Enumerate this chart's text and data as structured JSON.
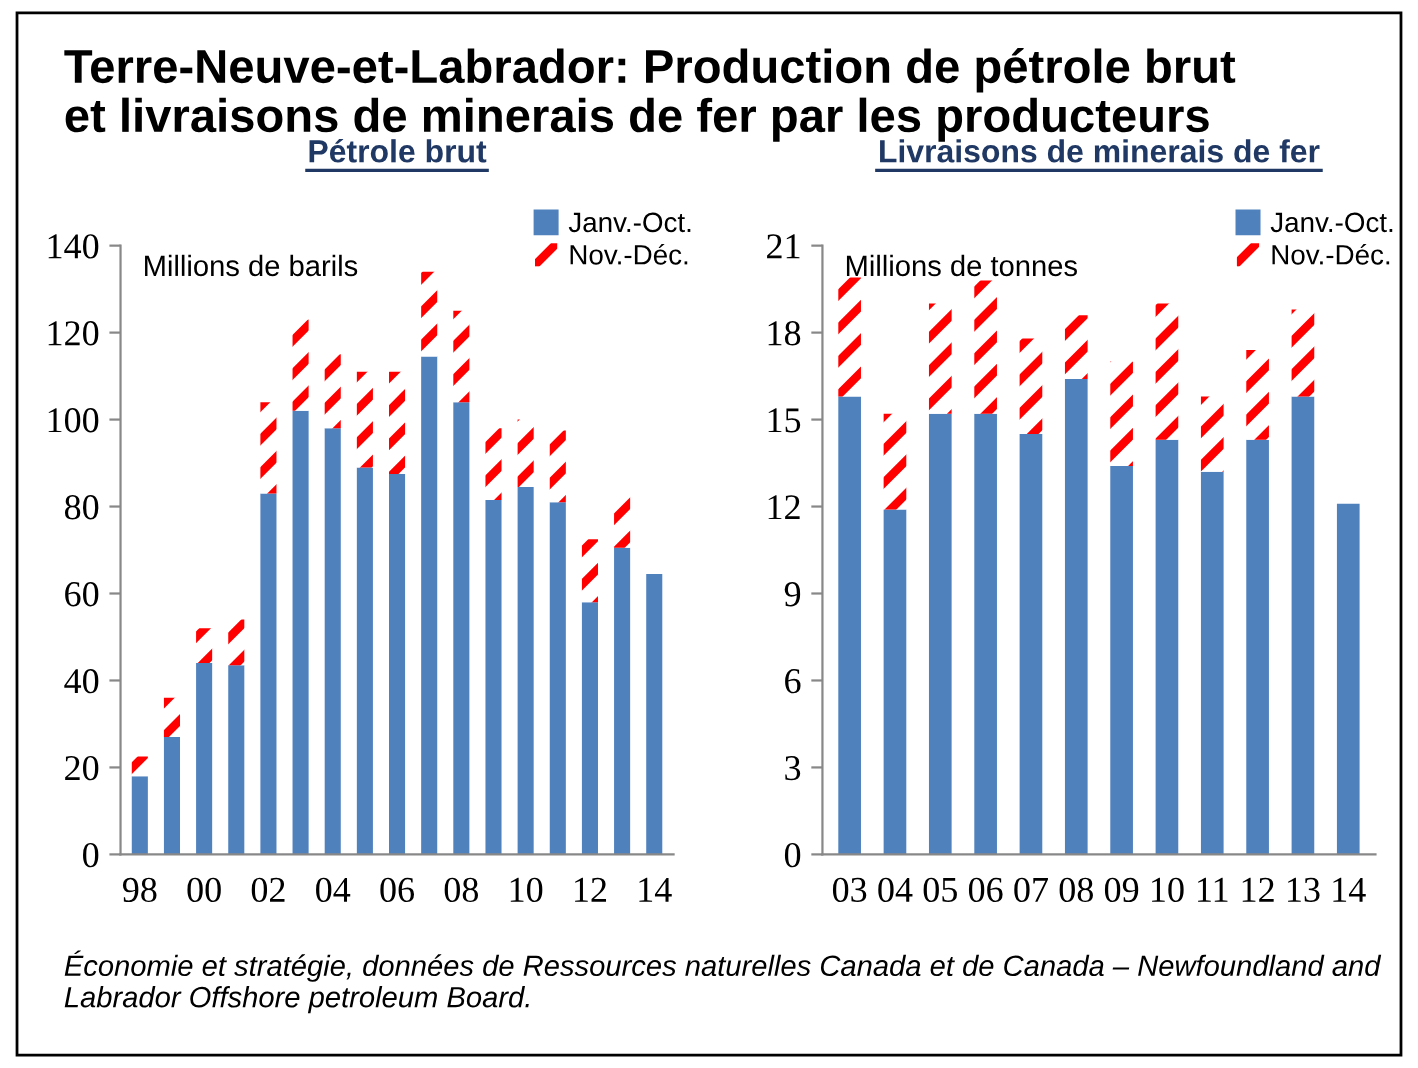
{
  "chart_data": [
    {
      "type": "bar",
      "title": "Terre-Neuve-et-Labrador: Production de pétrole brut\net livraisons de minerais de fer par les producteurs",
      "subtitle": "Pétrole brut",
      "ylabel": "Millions de barils",
      "categories": [
        "98",
        null,
        "00",
        null,
        "02",
        null,
        "04",
        null,
        "06",
        null,
        "08",
        null,
        "10",
        null,
        "12",
        null,
        "14"
      ],
      "stacked": true,
      "ylim": [
        0,
        140
      ],
      "yticks": [
        0,
        20,
        40,
        60,
        80,
        100,
        120,
        140
      ],
      "grid": false,
      "legend": "top right",
      "series": [
        {
          "name": "Janv.-Oct.",
          "color": "#4f81bd",
          "values": [
            18,
            27,
            44,
            43.5,
            83,
            102,
            98,
            89,
            87.5,
            114.5,
            104,
            81.5,
            84.5,
            81,
            58,
            70.5,
            64.5
          ]
        },
        {
          "name": "Nov.-Déc.",
          "color": "#ff0000",
          "values": [
            4.5,
            9,
            8,
            10.5,
            21,
            21,
            17,
            22,
            23.5,
            19.5,
            21,
            16.5,
            15.5,
            16.5,
            14.5,
            12.5,
            null
          ]
        }
      ]
    },
    {
      "type": "bar",
      "subtitle": "Livraisons de minerais de fer",
      "ylabel": "Millions de tonnes",
      "categories": [
        "03",
        "04",
        "05",
        "06",
        "07",
        "08",
        "09",
        "10",
        "11",
        "12",
        "13",
        "14"
      ],
      "stacked": true,
      "ylim": [
        0,
        21
      ],
      "yticks": [
        0,
        3,
        6,
        9,
        12,
        15,
        18,
        21
      ],
      "grid": false,
      "legend": "top right",
      "annotations": [
        "Économie et stratégie, données de Ressources naturelles Canada et de Canada – Newfoundland and Labrador Offshore petroleum Board."
      ],
      "series": [
        {
          "name": "Janv.-Oct.",
          "color": "#4f81bd",
          "values": [
            15.8,
            11.9,
            15.2,
            15.2,
            14.5,
            16.4,
            13.4,
            14.3,
            13.2,
            14.3,
            15.8,
            12.1
          ]
        },
        {
          "name": "Nov.-Déc.",
          "color": "#ff0000",
          "values": [
            4.1,
            3.3,
            3.8,
            4.6,
            3.3,
            2.2,
            3.6,
            4.7,
            2.6,
            3.1,
            3.0,
            null
          ]
        }
      ]
    }
  ]
}
